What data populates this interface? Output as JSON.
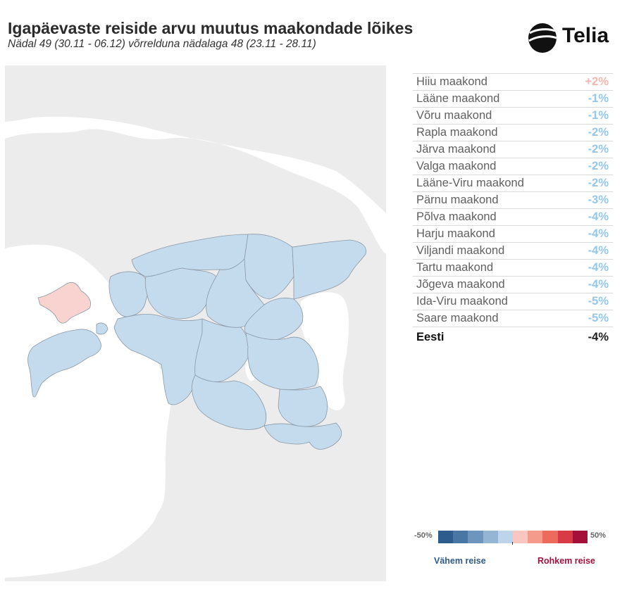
{
  "header": {
    "title": "Igapäevaste reiside arvu muutus maakondade lõikes",
    "subtitle": "Nädal 49 (30.11 - 06.12) võrrelduna nädalaga 48 (23.11 - 28.11)",
    "logo_text": "Telia"
  },
  "colors": {
    "decrease": "#94c7ec",
    "increase": "#f4b6ae",
    "county_fill_decrease": "#c4dbed",
    "county_fill_increase": "#f8d3cf",
    "total": "#222222"
  },
  "counties": [
    {
      "name": "Hiiu maakond",
      "change": "+2%"
    },
    {
      "name": "Lääne maakond",
      "change": "-1%"
    },
    {
      "name": "Võru maakond",
      "change": "-1%"
    },
    {
      "name": "Rapla maakond",
      "change": "-2%"
    },
    {
      "name": "Järva maakond",
      "change": "-2%"
    },
    {
      "name": "Valga maakond",
      "change": "-2%"
    },
    {
      "name": "Lääne-Viru maakond",
      "change": "-2%"
    },
    {
      "name": "Pärnu maakond",
      "change": "-3%"
    },
    {
      "name": "Põlva maakond",
      "change": "-4%"
    },
    {
      "name": "Harju maakond",
      "change": "-4%"
    },
    {
      "name": "Viljandi maakond",
      "change": "-4%"
    },
    {
      "name": "Tartu maakond",
      "change": "-4%"
    },
    {
      "name": "Jõgeva maakond",
      "change": "-4%"
    },
    {
      "name": "Ida-Viru maakond",
      "change": "-5%"
    },
    {
      "name": "Saare maakond",
      "change": "-5%"
    }
  ],
  "total": {
    "name": "Eesti",
    "change": "-4%"
  },
  "legend": {
    "min_label": "-50%",
    "max_label": "50%",
    "less_label": "Vähem reise",
    "more_label": "Rohkem reise",
    "colors": [
      "#2e5c8c",
      "#4a76a3",
      "#6d95bd",
      "#95b5d4",
      "#bcd5ea",
      "#f9c7bf",
      "#f59b8b",
      "#ec6b5c",
      "#d93b46",
      "#a5103a"
    ]
  }
}
